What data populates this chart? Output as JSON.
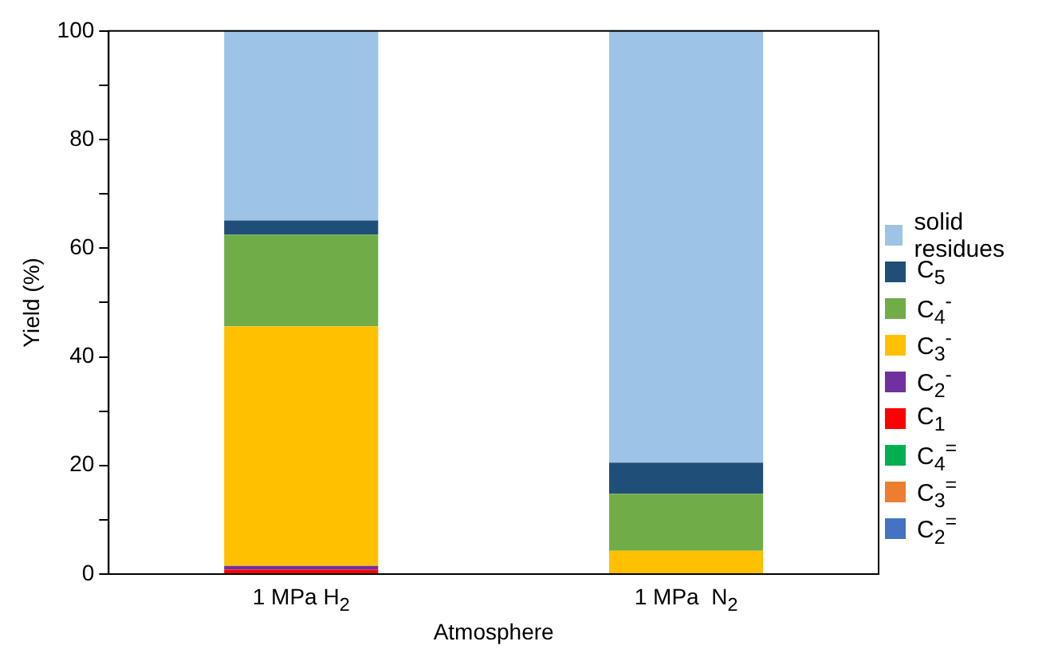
{
  "chart_data": {
    "type": "bar",
    "stacked": true,
    "xlabel": "Atmosphere",
    "ylabel": "Yield (%)",
    "categories": [
      "1 MPa H$_{2}$",
      "1 MPa  N$_{2}$"
    ],
    "series": [
      {
        "name": "C$_{2}$$^{=}$",
        "color": "#4472c4",
        "values": [
          0,
          0
        ]
      },
      {
        "name": "C$_{3}$$^{=}$",
        "color": "#ed7d31",
        "values": [
          0,
          0
        ]
      },
      {
        "name": "C$_{4}$$^{=}$",
        "color": "#00b050",
        "values": [
          0,
          0
        ]
      },
      {
        "name": "C$_{1}$",
        "color": "#ff0000",
        "values": [
          0.8,
          0
        ]
      },
      {
        "name": "C$_{2}$$^{-}$",
        "color": "#7030a0",
        "values": [
          0.7,
          0
        ]
      },
      {
        "name": "C$_{3}$$^{-}$",
        "color": "#ffc000",
        "values": [
          44.1,
          4.3
        ]
      },
      {
        "name": "C$_{4}$$^{-}$",
        "color": "#70ad47",
        "values": [
          16.9,
          10.5
        ]
      },
      {
        "name": "C$_{5}$",
        "color": "#1f4e79",
        "values": [
          2.6,
          5.7
        ]
      },
      {
        "name": "solid residues",
        "color": "#9dc3e6",
        "values": [
          35,
          79.5
        ]
      }
    ],
    "ylim": [
      0,
      100
    ],
    "yticks": [
      0,
      {
        "value": 10,
        "label": null
      },
      20,
      {
        "value": 30,
        "label": null
      },
      40,
      {
        "value": 50,
        "label": null
      },
      60,
      {
        "value": 70,
        "label": null
      },
      80,
      {
        "value": 90,
        "label": null
      },
      100
    ],
    "grid": false,
    "legend": "right"
  }
}
